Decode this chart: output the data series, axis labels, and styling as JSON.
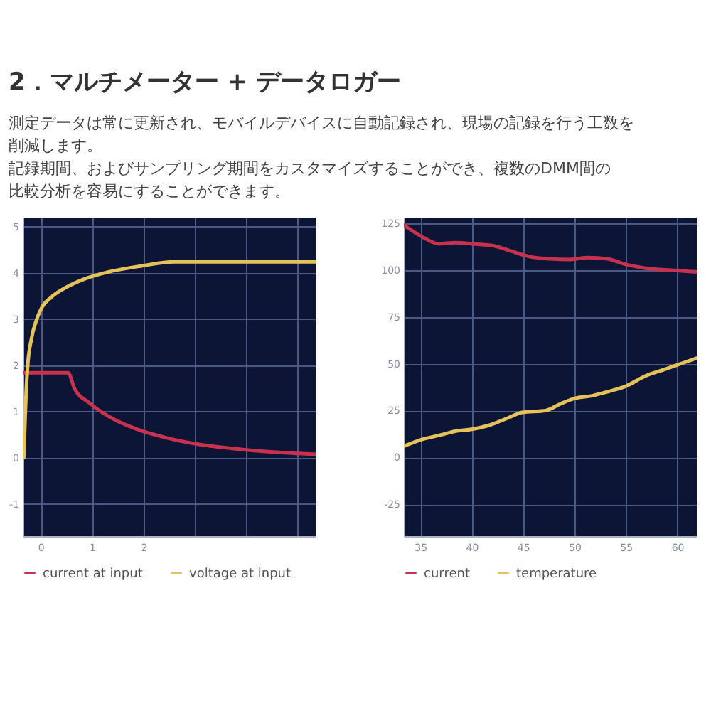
{
  "chart_data": [
    {
      "type": "line",
      "title": "2．マルチメーター + データロガー",
      "subtitle": "測定データは常に更新され、モバイルデバイスに自動記録され、現場の記録を行う工数を削減します。",
      "annotations": [
        "記録期間、およびサンプリング期間をカスタマイズすることができ、複数のDMM間の比較分析を容易にすることができます。"
      ],
      "series": [
        {
          "name": "current at input",
          "color": "#c8324f",
          "x": [
            -0.33,
            0.53,
            0.66,
            0.94,
            1.31,
            1.86,
            2.41,
            3.06,
            3.8,
            4.53,
            5.35
          ],
          "values": [
            1.84,
            1.84,
            1.49,
            1.19,
            0.9,
            0.62,
            0.44,
            0.29,
            0.19,
            0.12,
            0.07
          ]
        },
        {
          "name": "voltage at input",
          "color": "#e6c25a",
          "x": [
            -0.33,
            -0.3,
            -0.26,
            -0.18,
            -0.09,
            0.02,
            0.2,
            0.48,
            0.85,
            1.31,
            1.95,
            2.6,
            5.35
          ],
          "values": [
            0.0,
            0.98,
            1.91,
            2.58,
            2.96,
            3.25,
            3.47,
            3.68,
            3.87,
            4.02,
            4.15,
            4.24,
            4.24
          ]
        }
      ],
      "xlim": [
        -0.35,
        5.35
      ],
      "ylim": [
        -1.7,
        5.2
      ],
      "xticks": [
        0,
        1,
        2,
        {
          "value": 3,
          "label": null
        },
        {
          "value": 4,
          "label": null
        },
        {
          "value": 5,
          "label": null
        }
      ],
      "yticks": [
        -1,
        0,
        1,
        2,
        3,
        4,
        5
      ],
      "grid": true,
      "legend": "bottom",
      "line_style": "solid"
    },
    {
      "type": "line",
      "series": [
        {
          "name": "current",
          "color": "#c8324f",
          "x": [
            33.4,
            35.1,
            36.8,
            38.4,
            40.0,
            42.1,
            43.9,
            45.8,
            47.6,
            49.5,
            51.3,
            53.2,
            55.0,
            56.9,
            59.2,
            61.9
          ],
          "values": [
            124,
            118,
            114,
            114.6,
            114,
            113,
            110,
            107,
            106,
            105.6,
            106.7,
            106,
            103,
            101,
            100,
            99
          ]
        },
        {
          "name": "temperature",
          "color": "#e6c25a",
          "x": [
            33.4,
            35.1,
            37.0,
            38.4,
            40.0,
            41.6,
            43.5,
            44.9,
            47.2,
            48.6,
            50.0,
            51.8,
            53.2,
            55.0,
            56.9,
            58.8,
            60.6,
            61.9
          ],
          "values": [
            6,
            9.5,
            12,
            14,
            15,
            17,
            21,
            24,
            25,
            28.5,
            31.5,
            33,
            35,
            38,
            43.5,
            47,
            50.5,
            53
          ]
        }
      ],
      "xlim": [
        33.4,
        61.9
      ],
      "ylim": [
        -42,
        128
      ],
      "xticks": [
        35,
        40,
        45,
        50,
        55,
        60
      ],
      "yticks": [
        -25,
        0,
        25,
        50,
        75,
        100,
        125
      ],
      "grid": true,
      "legend": "bottom",
      "line_style": "solid"
    }
  ]
}
